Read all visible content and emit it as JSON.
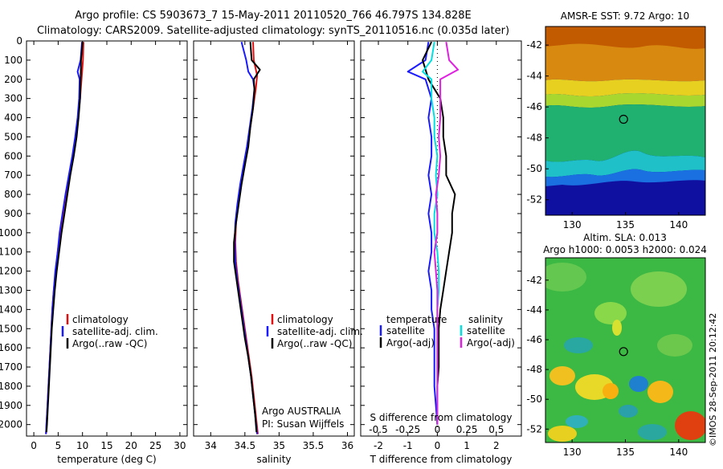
{
  "header": {
    "line1": "Argo profile: CS 5903673_7 15-May-2011 20110520_766 46.797S 134.828E",
    "line2": "Climatology: CARS2009. Satellite-adjusted climatology: synTS_20110516.nc (0.035d later)"
  },
  "credit": "Argo AUSTRALIA",
  "pi": "PI: Susan Wijffels",
  "watermark": "©IMOS 28-Sep-2011 20:12:42",
  "colors": {
    "climatology": "#e01010",
    "satellite": "#1a1aff",
    "argo": "#000000",
    "sal_sat": "#00e0e0",
    "sal_argo": "#e020e0"
  },
  "chart_data": [
    {
      "type": "line",
      "xlabel": "temperature (deg C)",
      "ylabel": "",
      "xlim": [
        -1.5,
        31.5
      ],
      "ylim": [
        2060,
        0
      ],
      "xticks": [
        0,
        5,
        10,
        15,
        20,
        25,
        30
      ],
      "yticks": [
        0,
        100,
        200,
        300,
        400,
        500,
        600,
        700,
        800,
        900,
        1000,
        1100,
        1200,
        1300,
        1400,
        1500,
        1600,
        1700,
        1800,
        1900,
        2000
      ],
      "legend": [
        "climatology",
        "satellite-adj. clim.",
        "Argo(..raw -QC)"
      ],
      "series": [
        {
          "name": "climatology",
          "color": "#e01010",
          "values": [
            [
              10.2,
              5
            ],
            [
              10.1,
              100
            ],
            [
              9.8,
              200
            ],
            [
              9.5,
              300
            ],
            [
              9.1,
              400
            ],
            [
              8.6,
              500
            ],
            [
              8.0,
              600
            ],
            [
              7.3,
              700
            ],
            [
              6.6,
              800
            ],
            [
              6.0,
              900
            ],
            [
              5.4,
              1000
            ],
            [
              4.9,
              1100
            ],
            [
              4.5,
              1200
            ],
            [
              4.1,
              1300
            ],
            [
              3.8,
              1400
            ],
            [
              3.6,
              1500
            ],
            [
              3.4,
              1600
            ],
            [
              3.2,
              1700
            ],
            [
              3.0,
              1800
            ],
            [
              2.8,
              1900
            ],
            [
              2.6,
              2000
            ],
            [
              2.5,
              2050
            ]
          ]
        },
        {
          "name": "satellite-adj. clim.",
          "color": "#1a1aff",
          "values": [
            [
              9.9,
              5
            ],
            [
              9.6,
              100
            ],
            [
              9.0,
              160
            ],
            [
              9.4,
              200
            ],
            [
              9.3,
              300
            ],
            [
              9.0,
              400
            ],
            [
              8.5,
              500
            ],
            [
              7.9,
              600
            ],
            [
              7.2,
              700
            ],
            [
              6.5,
              800
            ],
            [
              5.9,
              900
            ],
            [
              5.3,
              1000
            ],
            [
              4.9,
              1100
            ],
            [
              4.4,
              1200
            ],
            [
              4.1,
              1300
            ],
            [
              3.8,
              1400
            ],
            [
              3.6,
              1500
            ],
            [
              3.4,
              1600
            ],
            [
              3.2,
              1700
            ],
            [
              3.0,
              1800
            ],
            [
              2.8,
              1900
            ],
            [
              2.6,
              2000
            ],
            [
              2.5,
              2050
            ]
          ]
        },
        {
          "name": "Argo(..raw -QC)",
          "color": "#000000",
          "values": [
            [
              10.0,
              5
            ],
            [
              9.7,
              100
            ],
            [
              9.6,
              200
            ],
            [
              9.5,
              300
            ],
            [
              9.2,
              400
            ],
            [
              8.8,
              500
            ],
            [
              8.2,
              600
            ],
            [
              7.5,
              700
            ],
            [
              6.9,
              800
            ],
            [
              6.3,
              900
            ],
            [
              5.7,
              1000
            ],
            [
              5.2,
              1100
            ],
            [
              4.7,
              1200
            ],
            [
              4.3,
              1300
            ],
            [
              4.0,
              1400
            ],
            [
              3.7,
              1500
            ],
            [
              3.5,
              1600
            ],
            [
              3.3,
              1700
            ],
            [
              3.1,
              1800
            ],
            [
              2.9,
              1900
            ],
            [
              2.7,
              2000
            ],
            [
              2.6,
              2040
            ]
          ]
        }
      ]
    },
    {
      "type": "line",
      "xlabel": "salinity",
      "ylabel": "",
      "xlim": [
        33.75,
        36.1
      ],
      "ylim": [
        2060,
        0
      ],
      "xticks": [
        34,
        34.5,
        35,
        35.5,
        36
      ],
      "legend": [
        "climatology",
        "satellite-adj. clim.",
        "Argo(..raw -QC)"
      ],
      "series": [
        {
          "name": "climatology",
          "color": "#e01010",
          "values": [
            [
              34.62,
              5
            ],
            [
              34.63,
              100
            ],
            [
              34.68,
              180
            ],
            [
              34.66,
              250
            ],
            [
              34.62,
              350
            ],
            [
              34.58,
              450
            ],
            [
              34.54,
              550
            ],
            [
              34.49,
              650
            ],
            [
              34.44,
              750
            ],
            [
              34.4,
              850
            ],
            [
              34.37,
              950
            ],
            [
              34.36,
              1050
            ],
            [
              34.37,
              1150
            ],
            [
              34.4,
              1250
            ],
            [
              34.44,
              1350
            ],
            [
              34.48,
              1450
            ],
            [
              34.52,
              1550
            ],
            [
              34.56,
              1650
            ],
            [
              34.6,
              1750
            ],
            [
              34.63,
              1850
            ],
            [
              34.66,
              1950
            ],
            [
              34.69,
              2050
            ]
          ]
        },
        {
          "name": "satellite-adj. clim.",
          "color": "#1a1aff",
          "values": [
            [
              34.45,
              5
            ],
            [
              34.52,
              100
            ],
            [
              34.55,
              160
            ],
            [
              34.62,
              200
            ],
            [
              34.64,
              250
            ],
            [
              34.61,
              350
            ],
            [
              34.57,
              450
            ],
            [
              34.53,
              550
            ],
            [
              34.48,
              650
            ],
            [
              34.43,
              750
            ],
            [
              34.39,
              850
            ],
            [
              34.36,
              950
            ],
            [
              34.35,
              1050
            ],
            [
              34.36,
              1150
            ],
            [
              34.39,
              1250
            ],
            [
              34.43,
              1350
            ],
            [
              34.47,
              1450
            ],
            [
              34.51,
              1550
            ],
            [
              34.55,
              1650
            ],
            [
              34.59,
              1750
            ],
            [
              34.62,
              1850
            ],
            [
              34.65,
              1950
            ],
            [
              34.68,
              2050
            ]
          ]
        },
        {
          "name": "Argo(..raw -QC)",
          "color": "#000000",
          "values": [
            [
              34.58,
              5
            ],
            [
              34.6,
              100
            ],
            [
              34.72,
              150
            ],
            [
              34.63,
              200
            ],
            [
              34.64,
              250
            ],
            [
              34.62,
              350
            ],
            [
              34.58,
              450
            ],
            [
              34.55,
              550
            ],
            [
              34.5,
              650
            ],
            [
              34.45,
              750
            ],
            [
              34.41,
              850
            ],
            [
              34.37,
              950
            ],
            [
              34.34,
              1050
            ],
            [
              34.34,
              1150
            ],
            [
              34.38,
              1250
            ],
            [
              34.42,
              1350
            ],
            [
              34.46,
              1450
            ],
            [
              34.5,
              1550
            ],
            [
              34.55,
              1650
            ],
            [
              34.59,
              1750
            ],
            [
              34.62,
              1850
            ],
            [
              34.65,
              1950
            ],
            [
              34.67,
              2040
            ]
          ]
        }
      ]
    },
    {
      "type": "line",
      "xlabel": "T difference from climatology",
      "ylabel": "",
      "xlim": [
        -2.6,
        2.85
      ],
      "ylim": [
        2060,
        0
      ],
      "xticks": [
        -2,
        -1,
        0,
        1,
        2
      ],
      "top_xlabel": "S difference from climatology",
      "top_xticks": [
        -0.5,
        -0.25,
        0,
        0.25,
        0.5
      ],
      "legend_headers": [
        "temperature",
        "salinity"
      ],
      "legend": [
        "satellite",
        "Argo(-adj)",
        "satellite",
        "Argo(-adj)"
      ],
      "series": [
        {
          "name": "satellite",
          "group": "temperature",
          "color": "#1a1aff",
          "values": [
            [
              -0.3,
              5
            ],
            [
              -0.4,
              100
            ],
            [
              -1.0,
              160
            ],
            [
              -0.4,
              200
            ],
            [
              -0.2,
              300
            ],
            [
              -0.3,
              400
            ],
            [
              -0.2,
              500
            ],
            [
              -0.2,
              600
            ],
            [
              -0.3,
              700
            ],
            [
              -0.2,
              800
            ],
            [
              -0.3,
              900
            ],
            [
              -0.2,
              1000
            ],
            [
              -0.2,
              1100
            ],
            [
              -0.3,
              1200
            ],
            [
              -0.2,
              1300
            ],
            [
              -0.2,
              1400
            ],
            [
              -0.1,
              1500
            ],
            [
              -0.1,
              1600
            ],
            [
              -0.1,
              1700
            ],
            [
              -0.1,
              1800
            ],
            [
              -0.05,
              1900
            ],
            [
              0,
              2000
            ]
          ]
        },
        {
          "name": "Argo(-adj)",
          "group": "temperature",
          "color": "#000000",
          "values": [
            [
              -0.2,
              5
            ],
            [
              -0.5,
              100
            ],
            [
              -0.3,
              200
            ],
            [
              0.1,
              300
            ],
            [
              0.2,
              400
            ],
            [
              0.2,
              500
            ],
            [
              0.3,
              600
            ],
            [
              0.3,
              700
            ],
            [
              0.6,
              800
            ],
            [
              0.5,
              900
            ],
            [
              0.5,
              1000
            ],
            [
              0.4,
              1100
            ],
            [
              0.3,
              1200
            ],
            [
              0.2,
              1300
            ],
            [
              0.1,
              1400
            ],
            [
              0.05,
              1500
            ],
            [
              0.05,
              1600
            ],
            [
              0.05,
              1700
            ],
            [
              0,
              1800
            ],
            [
              0,
              1900
            ],
            [
              0,
              2000
            ]
          ]
        },
        {
          "name": "satellite",
          "group": "salinity",
          "color": "#00e0e0",
          "values": [
            [
              -0.1,
              5
            ],
            [
              -0.2,
              100
            ],
            [
              -0.5,
              160
            ],
            [
              -0.2,
              200
            ],
            [
              -0.2,
              300
            ],
            [
              -0.1,
              400
            ],
            [
              -0.1,
              500
            ],
            [
              0,
              600
            ],
            [
              -0.05,
              700
            ],
            [
              0,
              800
            ],
            [
              -0.1,
              900
            ],
            [
              -0.1,
              1000
            ],
            [
              0,
              1100
            ],
            [
              0.05,
              1200
            ],
            [
              0.05,
              1300
            ],
            [
              0,
              1400
            ],
            [
              0,
              1500
            ],
            [
              0,
              1600
            ],
            [
              0,
              1700
            ],
            [
              0,
              1800
            ],
            [
              0,
              1900
            ],
            [
              0,
              2000
            ]
          ]
        },
        {
          "name": "Argo(-adj)",
          "group": "salinity",
          "color": "#e020e0",
          "values": [
            [
              0.3,
              5
            ],
            [
              0.4,
              100
            ],
            [
              0.7,
              150
            ],
            [
              0.1,
              200
            ],
            [
              0.1,
              300
            ],
            [
              0.1,
              400
            ],
            [
              0.05,
              500
            ],
            [
              0.1,
              600
            ],
            [
              0.05,
              700
            ],
            [
              -0.05,
              800
            ],
            [
              0,
              900
            ],
            [
              0,
              1000
            ],
            [
              -0.1,
              1100
            ],
            [
              -0.05,
              1200
            ],
            [
              0,
              1300
            ],
            [
              0,
              1400
            ],
            [
              0,
              1500
            ],
            [
              0,
              1600
            ],
            [
              0,
              1700
            ],
            [
              0,
              1800
            ],
            [
              0,
              1900
            ],
            [
              0,
              2000
            ]
          ]
        }
      ]
    },
    {
      "type": "heatmap",
      "title": "AMSR-E SST: 9.72 Argo: 10",
      "xlim": [
        127.5,
        142.5
      ],
      "ylim": [
        -53,
        -40.8
      ],
      "xticks": [
        130,
        135,
        140
      ],
      "yticks": [
        -42,
        -44,
        -46,
        -48,
        -50,
        -52
      ],
      "marker": {
        "lon": 134.828,
        "lat": -46.797
      }
    },
    {
      "type": "heatmap",
      "title": "Altim. SLA: 0.013",
      "subtitle": "Argo h1000: 0.0053 h2000: 0.024",
      "xlim": [
        127.5,
        142.5
      ],
      "ylim": [
        -52.9,
        -40.5
      ],
      "xticks": [
        130,
        135,
        140
      ],
      "yticks": [
        -42,
        -44,
        -46,
        -48,
        -50,
        -52
      ],
      "marker": {
        "lon": 134.828,
        "lat": -46.797
      }
    }
  ]
}
